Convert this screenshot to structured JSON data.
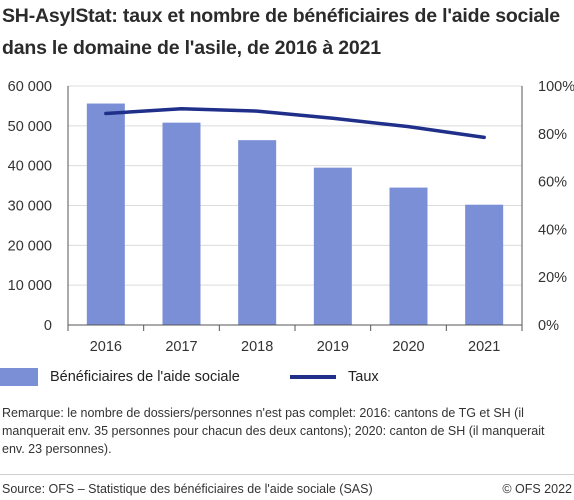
{
  "chart_data": {
    "type": "bar",
    "title": "SH-AsylStat: taux et nombre de bénéficiaires de l'aide sociale dans le domaine de l'asile, de 2016 à 2021",
    "categories": [
      "2016",
      "2017",
      "2018",
      "2019",
      "2020",
      "2021"
    ],
    "series": [
      {
        "name": "Bénéficiaires de l'aide sociale",
        "kind": "bar",
        "axis": "left",
        "values": [
          55600,
          50800,
          46400,
          39500,
          34500,
          30200
        ]
      },
      {
        "name": "Taux",
        "kind": "line",
        "axis": "right",
        "values": [
          88.5,
          90.5,
          89.5,
          86.5,
          83.0,
          78.5
        ]
      }
    ],
    "y_left": {
      "ylim": [
        0,
        60000
      ],
      "ticks": [
        "0",
        "10 000",
        "20 000",
        "30 000",
        "40 000",
        "50 000",
        "60 000"
      ]
    },
    "y_right": {
      "ylim": [
        0,
        100
      ],
      "ticks": [
        "0%",
        "20%",
        "40%",
        "60%",
        "80%",
        "100%"
      ]
    },
    "grid": true,
    "legend_position": "bottom",
    "colors": {
      "bar": "#7b8fd6",
      "line": "#1f2f8a",
      "grid": "#dcdcdc",
      "axis": "#555555"
    }
  },
  "legend": {
    "bars_label": "Bénéficiaires de l'aide sociale",
    "line_label": "Taux"
  },
  "note": "Remarque: le nombre de dossiers/personnes n'est pas complet: 2016: cantons de TG et SH (il manquerait env. 35 personnes pour chacun des deux cantons); 2020: canton de SH (il manquerait env. 23 personnes).",
  "footer": {
    "source": "Source: OFS – Statistique des bénéficiaires de l'aide sociale (SAS)",
    "copyright": "© OFS 2022"
  }
}
